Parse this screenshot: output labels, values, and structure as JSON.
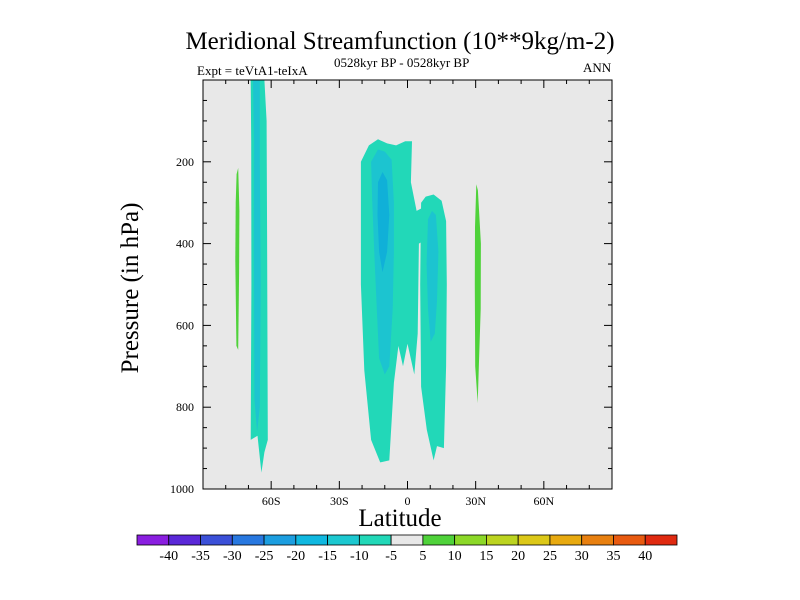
{
  "chart_data": {
    "type": "heatmap",
    "subtype": "filled-contour",
    "title": "Meridional Streamfunction (10**9kg/m-2)",
    "left_subtitle": "Expt = teVtA1-teIxA",
    "center_subtitle": "0528kyr BP - 0528kyr BP",
    "right_subtitle": "ANN",
    "xlabel": "Latitude",
    "ylabel": "Pressure (in hPa)",
    "xlim": [
      -90,
      90
    ],
    "ylim": [
      1000,
      0
    ],
    "x_ticks": [
      {
        "value": -60,
        "label": "60S"
      },
      {
        "value": -30,
        "label": "30S"
      },
      {
        "value": 0,
        "label": "0"
      },
      {
        "value": 30,
        "label": "30N"
      },
      {
        "value": 60,
        "label": "60N"
      }
    ],
    "y_ticks": [
      {
        "value": 200,
        "label": "200"
      },
      {
        "value": 400,
        "label": "400"
      },
      {
        "value": 600,
        "label": "600"
      },
      {
        "value": 800,
        "label": "800"
      },
      {
        "value": 1000,
        "label": "1000"
      }
    ],
    "background_color": "#e8e8e8",
    "contour_regions": [
      {
        "name": "sh-polar-positive-cell",
        "level": 5,
        "color": "#4fd23a",
        "outline": [
          [
            -75.2,
            230
          ],
          [
            -74.5,
            215
          ],
          [
            -74.0,
            320
          ],
          [
            -74.1,
            470
          ],
          [
            -74.5,
            660
          ],
          [
            -75.3,
            650
          ],
          [
            -75.8,
            440
          ],
          [
            -75.6,
            300
          ]
        ]
      },
      {
        "name": "sh-midlat-negative-cell",
        "level": -5,
        "color": "#22d8b8",
        "outline": [
          [
            -69,
            0
          ],
          [
            -63,
            0
          ],
          [
            -62,
            100
          ],
          [
            -61.8,
            380
          ],
          [
            -61.5,
            880
          ],
          [
            -63,
            910
          ],
          [
            -64.3,
            960
          ],
          [
            -66,
            870
          ],
          [
            -69,
            880
          ],
          [
            -68.7,
            500
          ],
          [
            -68.8,
            150
          ]
        ]
      },
      {
        "name": "sh-midlat-negative-core",
        "level": -10,
        "color": "#1cc4d0",
        "outline": [
          [
            -68,
            0
          ],
          [
            -65,
            0
          ],
          [
            -65,
            200
          ],
          [
            -64.6,
            500
          ],
          [
            -65,
            800
          ],
          [
            -66.2,
            860
          ],
          [
            -67.4,
            780
          ],
          [
            -67.6,
            400
          ],
          [
            -67.5,
            150
          ]
        ]
      },
      {
        "name": "tropical-negative-cell",
        "level": -5,
        "color": "#22d8b8",
        "outline": [
          [
            -20.5,
            200
          ],
          [
            -17,
            160
          ],
          [
            -13,
            145
          ],
          [
            -9,
            155
          ],
          [
            -5,
            160
          ],
          [
            -1,
            150
          ],
          [
            2,
            150
          ],
          [
            1.5,
            250
          ],
          [
            4,
            320
          ],
          [
            7.5,
            310
          ],
          [
            8,
            390
          ],
          [
            5,
            400
          ],
          [
            4.5,
            620
          ],
          [
            3,
            720
          ],
          [
            0,
            645
          ],
          [
            -2,
            700
          ],
          [
            -4,
            650
          ],
          [
            -6,
            740
          ],
          [
            -8,
            930
          ],
          [
            -12,
            935
          ],
          [
            -16,
            880
          ],
          [
            -19,
            710
          ],
          [
            -20.5,
            500
          ]
        ]
      },
      {
        "name": "tropical-negative-core",
        "level": -10,
        "color": "#1cc4d0",
        "outline": [
          [
            -16,
            200
          ],
          [
            -13,
            170
          ],
          [
            -10,
            175
          ],
          [
            -7,
            195
          ],
          [
            -6,
            300
          ],
          [
            -6,
            420
          ],
          [
            -6.5,
            560
          ],
          [
            -8,
            700
          ],
          [
            -10,
            720
          ],
          [
            -12.5,
            680
          ],
          [
            -13.5,
            560
          ],
          [
            -14.5,
            440
          ],
          [
            -15.5,
            300
          ]
        ]
      },
      {
        "name": "tropical-negative-inner",
        "level": -15,
        "color": "#10b0d8",
        "outline": [
          [
            -13,
            250
          ],
          [
            -11,
            225
          ],
          [
            -9,
            245
          ],
          [
            -8,
            330
          ],
          [
            -9,
            420
          ],
          [
            -11,
            470
          ],
          [
            -12.5,
            420
          ],
          [
            -13.2,
            330
          ]
        ]
      },
      {
        "name": "nh-tropical-negative-cell",
        "level": -5,
        "color": "#22d8b8",
        "outline": [
          [
            6,
            300
          ],
          [
            8,
            285
          ],
          [
            11.5,
            280
          ],
          [
            15,
            295
          ],
          [
            17,
            345
          ],
          [
            17.3,
            500
          ],
          [
            17,
            700
          ],
          [
            16,
            900
          ],
          [
            13,
            895
          ],
          [
            11.5,
            930
          ],
          [
            8.5,
            855
          ],
          [
            6,
            750
          ],
          [
            5.6,
            500
          ],
          [
            5.8,
            380
          ]
        ]
      },
      {
        "name": "nh-tropical-negative-core",
        "level": -10,
        "color": "#1cc4d0",
        "outline": [
          [
            9,
            340
          ],
          [
            10.8,
            320
          ],
          [
            12.5,
            330
          ],
          [
            13.6,
            420
          ],
          [
            13,
            540
          ],
          [
            12,
            620
          ],
          [
            10.2,
            640
          ],
          [
            9,
            560
          ],
          [
            8.4,
            450
          ]
        ]
      },
      {
        "name": "nh-subtropical-positive-cell",
        "level": 5,
        "color": "#4fd23a",
        "outline": [
          [
            30.3,
            255
          ],
          [
            31,
            270
          ],
          [
            32.3,
            400
          ],
          [
            32.2,
            560
          ],
          [
            31.5,
            680
          ],
          [
            30.9,
            790
          ],
          [
            29.8,
            700
          ],
          [
            29.6,
            500
          ],
          [
            29.7,
            360
          ]
        ]
      }
    ],
    "colorbar": {
      "labels": [
        "-40",
        "-35",
        "-30",
        "-25",
        "-20",
        "-15",
        "-10",
        "-5",
        "5",
        "10",
        "15",
        "20",
        "25",
        "30",
        "35",
        "40"
      ],
      "colors": [
        "#8a1ee0",
        "#5a28d8",
        "#3b50d8",
        "#2878e0",
        "#1c9ee0",
        "#10b8e0",
        "#1cc8d0",
        "#22d8b8",
        "#e8e8e8",
        "#4fd23a",
        "#8cd828",
        "#bcd420",
        "#dcc818",
        "#e8aa10",
        "#e88010",
        "#e85a10",
        "#e02a10"
      ]
    }
  }
}
